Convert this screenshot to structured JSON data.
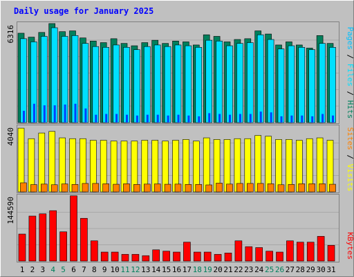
{
  "title": "Daily usage for January 2025",
  "colors": {
    "background": "#c0c0c0",
    "title": "#0000ff",
    "hits": "#00805c",
    "files": "#00e0ff",
    "pages": "#00c0ff",
    "pages_dark": "#0040ff",
    "visits": "#ffff00",
    "sites": "#ff8000",
    "kbytes": "#ff0000",
    "weekend_label": "#00805c",
    "weekday_label": "#000000"
  },
  "chart_data": [
    {
      "type": "bar",
      "panel": "hits-files-pages",
      "ylabel_parts": [
        "Pages",
        "Files",
        "Hits"
      ],
      "ymax_label": "6316",
      "ylim": [
        0,
        6316
      ],
      "categories": [
        "1",
        "2",
        "3",
        "4",
        "5",
        "6",
        "7",
        "8",
        "9",
        "10",
        "11",
        "12",
        "13",
        "14",
        "15",
        "16",
        "17",
        "18",
        "19",
        "20",
        "21",
        "22",
        "23",
        "24",
        "25",
        "26",
        "27",
        "28",
        "29",
        "30",
        "31"
      ],
      "series": [
        {
          "name": "Hits",
          "values": [
            5700,
            5450,
            5750,
            6316,
            5800,
            5850,
            5400,
            5200,
            5100,
            5350,
            5050,
            4900,
            5100,
            5250,
            5050,
            5200,
            5150,
            4950,
            5600,
            5500,
            5150,
            5300,
            5350,
            5850,
            5650,
            4950,
            5150,
            4950,
            4750,
            5550,
            5050
          ]
        },
        {
          "name": "Files",
          "values": [
            5350,
            5150,
            5500,
            6050,
            5500,
            5550,
            5050,
            4850,
            4800,
            4950,
            4800,
            4650,
            4850,
            4950,
            4850,
            4950,
            4900,
            4800,
            5250,
            5200,
            4900,
            5050,
            5100,
            5600,
            5300,
            4700,
            4900,
            4800,
            4650,
            5050,
            4800
          ]
        },
        {
          "name": "Pages",
          "values": [
            750,
            1200,
            1100,
            1100,
            1150,
            1200,
            900,
            500,
            550,
            550,
            500,
            450,
            500,
            500,
            450,
            500,
            450,
            400,
            600,
            550,
            500,
            550,
            550,
            700,
            650,
            400,
            450,
            450,
            400,
            550,
            450
          ]
        }
      ]
    },
    {
      "type": "bar",
      "panel": "visits-sites",
      "ylabel_parts": [
        "Sites",
        "Visits"
      ],
      "ymax_label": "4040",
      "ylim": [
        0,
        4040
      ],
      "categories": [
        "1",
        "2",
        "3",
        "4",
        "5",
        "6",
        "7",
        "8",
        "9",
        "10",
        "11",
        "12",
        "13",
        "14",
        "15",
        "16",
        "17",
        "18",
        "19",
        "20",
        "21",
        "22",
        "23",
        "24",
        "25",
        "26",
        "27",
        "28",
        "29",
        "30",
        "31"
      ],
      "series": [
        {
          "name": "Visits",
          "values": [
            3950,
            3300,
            3650,
            3750,
            3350,
            3300,
            3300,
            3200,
            3200,
            3150,
            3150,
            3150,
            3200,
            3200,
            3150,
            3200,
            3250,
            3150,
            3350,
            3250,
            3250,
            3300,
            3300,
            3500,
            3450,
            3250,
            3250,
            3200,
            3300,
            3350,
            3200
          ]
        },
        {
          "name": "Sites",
          "values": [
            560,
            450,
            480,
            440,
            490,
            460,
            520,
            520,
            500,
            470,
            500,
            460,
            480,
            490,
            470,
            480,
            460,
            460,
            430,
            540,
            480,
            520,
            520,
            520,
            500,
            440,
            460,
            500,
            500,
            500,
            470
          ]
        }
      ]
    },
    {
      "type": "bar",
      "panel": "kbytes",
      "ylabel_parts": [
        "KBytes"
      ],
      "ymax_label": "144590",
      "ylim": [
        0,
        144590
      ],
      "categories": [
        "1",
        "2",
        "3",
        "4",
        "5",
        "6",
        "7",
        "8",
        "9",
        "10",
        "11",
        "12",
        "13",
        "14",
        "15",
        "16",
        "17",
        "18",
        "19",
        "20",
        "21",
        "22",
        "23",
        "24",
        "25",
        "26",
        "27",
        "28",
        "29",
        "30",
        "31"
      ],
      "weekend_days": [
        "4",
        "5",
        "11",
        "12",
        "18",
        "19",
        "25",
        "26"
      ],
      "series": [
        {
          "name": "KBytes",
          "values": [
            60000,
            100000,
            105000,
            112000,
            65000,
            145000,
            95000,
            45000,
            20000,
            20000,
            15000,
            15000,
            12000,
            25000,
            22000,
            20000,
            42000,
            20000,
            20000,
            15000,
            18000,
            45000,
            32000,
            30000,
            22000,
            20000,
            45000,
            42000,
            42000,
            55000,
            35000
          ]
        }
      ]
    }
  ]
}
